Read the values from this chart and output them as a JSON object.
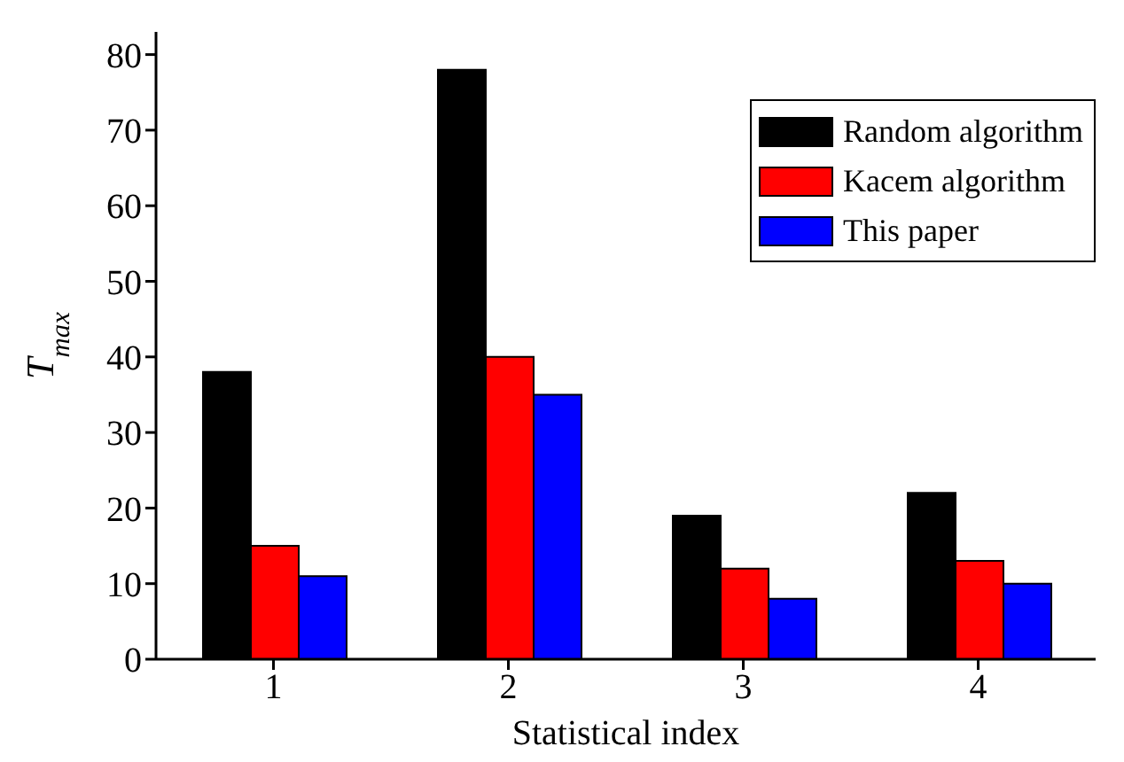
{
  "chart_data": {
    "type": "bar",
    "xlabel": "Statistical index",
    "ylabel": "T$_{max}$",
    "categories": [
      "1",
      "2",
      "3",
      "4"
    ],
    "series": [
      {
        "name": "Random algorithm",
        "color": "#000000",
        "values": [
          38,
          78,
          19,
          22
        ]
      },
      {
        "name": "Kacem algorithm",
        "color": "#ff0000",
        "values": [
          15,
          40,
          12,
          13
        ]
      },
      {
        "name": "This paper",
        "color": "#0000ff",
        "values": [
          11,
          35,
          8,
          10
        ]
      }
    ],
    "ylim": [
      0,
      83
    ],
    "yticks": [
      0,
      10,
      20,
      30,
      40,
      50,
      60,
      70,
      80
    ],
    "grid": false,
    "legend": "top right"
  }
}
